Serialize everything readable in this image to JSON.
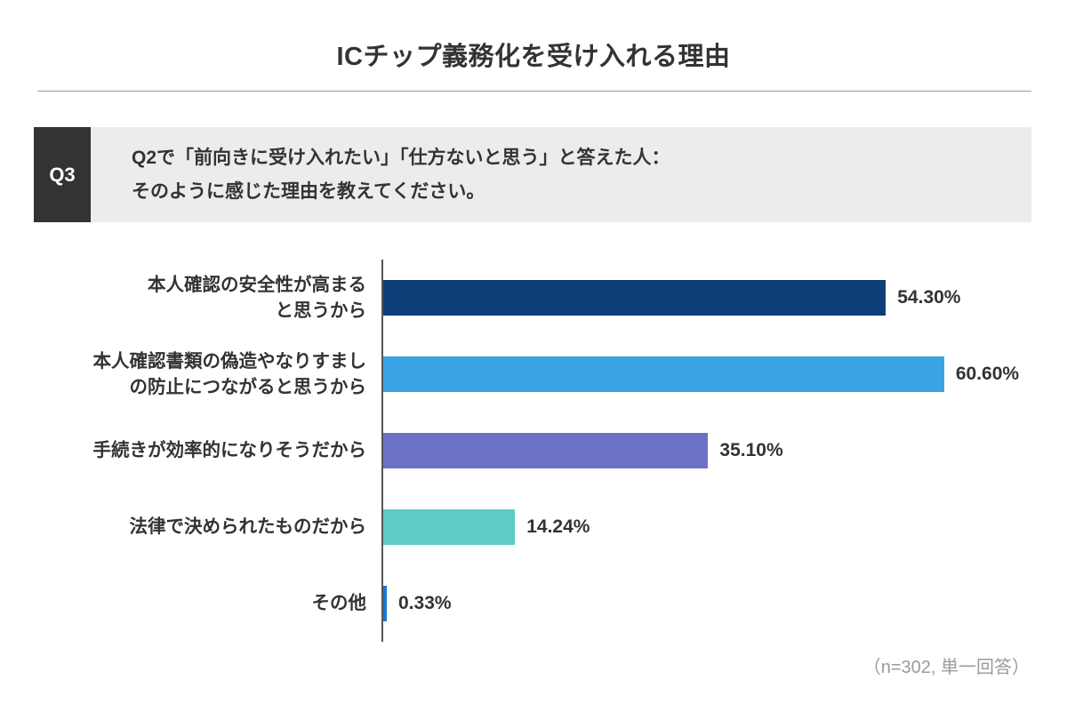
{
  "page": {
    "title": "ICチップ義務化を受け入れる理由",
    "footnote": "（n=302, 単一回答）"
  },
  "question": {
    "badge": "Q3",
    "line1": "Q2で「前向きに受け入れたい」「仕方ないと思う」と答えた人：",
    "line2": "そのように感じた理由を教えてください。"
  },
  "colors": {
    "text": "#333333",
    "badge_background": "#333333",
    "question_background": "#ececec",
    "axis": "#55565a",
    "divider": "#9a9a9a",
    "footnote_text": "#9b9b9b"
  },
  "chart_data": {
    "type": "bar",
    "orientation": "horizontal",
    "title": "ICチップ義務化を受け入れる理由",
    "categories": [
      "本人確認の安全性が高まると思うから",
      "本人確認書類の偽造やなりすましの防止につながると思うから",
      "手続きが効率的になりそうだから",
      "法律で決められたものだから",
      "その他"
    ],
    "category_lines": [
      [
        "本人確認の安全性が高まる",
        "と思うから"
      ],
      [
        "本人確認書類の偽造やなりすまし",
        "の防止につながると思うから"
      ],
      [
        "手続きが効率的になりそうだから"
      ],
      [
        "法律で決められたものだから"
      ],
      [
        "その他"
      ]
    ],
    "values": [
      54.3,
      60.6,
      35.1,
      14.24,
      0.33
    ],
    "value_labels": [
      "54.30%",
      "60.60%",
      "35.10%",
      "14.24%",
      "0.33%"
    ],
    "bar_colors": [
      "#0d3e78",
      "#3aa3e3",
      "#6b72c4",
      "#5fcbc7",
      "#1778cf"
    ],
    "xlabel": "",
    "ylabel": "",
    "xlim": [
      0,
      65
    ],
    "grid": false,
    "legend": false,
    "annotation": "（n=302, 単一回答）",
    "sample_size": "n=302",
    "answer_type": "単一回答"
  }
}
